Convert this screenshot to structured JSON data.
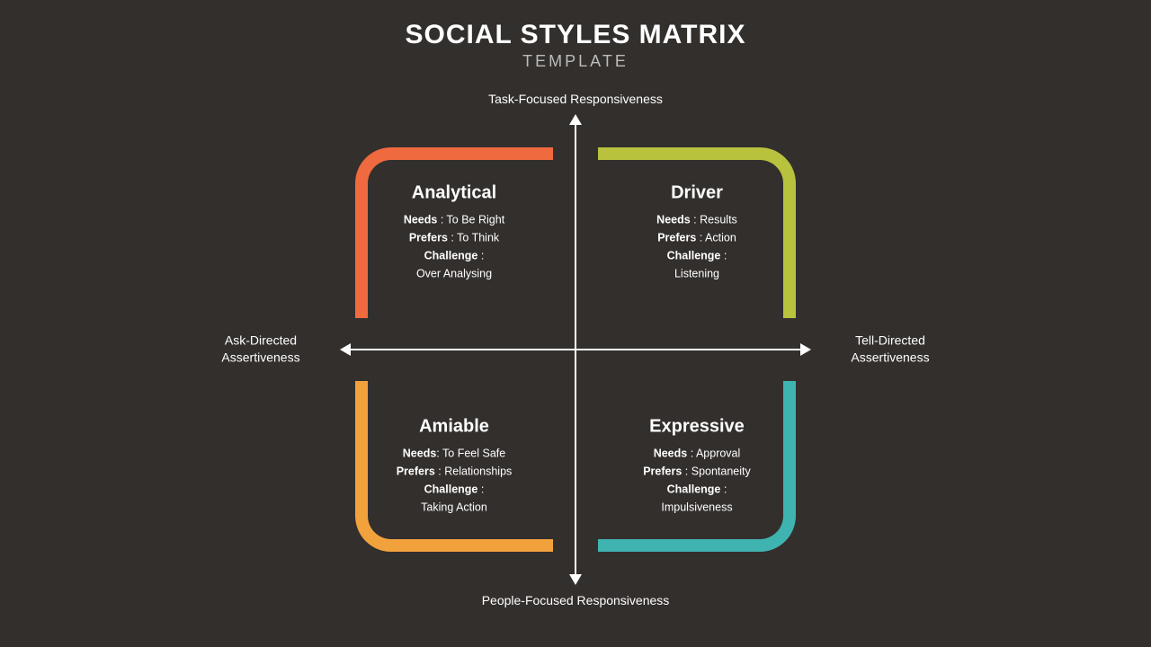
{
  "header": {
    "title": "SOCIAL STYLES MATRIX",
    "subtitle": "TEMPLATE"
  },
  "colors": {
    "background": "#332f2d",
    "text": "#ffffff",
    "axis": "#ffffff",
    "q_tl": "#ef6a3f",
    "q_tr": "#b9c23d",
    "q_bl": "#f2a23d",
    "q_br": "#3fb3b0"
  },
  "axes": {
    "top": "Task-Focused Responsiveness",
    "bottom": "People-Focused Responsiveness",
    "left_line1": "Ask-Directed",
    "left_line2": "Assertiveness",
    "right_line1": "Tell-Directed",
    "right_line2": "Assertiveness"
  },
  "quadrants": {
    "tl": {
      "title": "Analytical",
      "needs_label": "Needs",
      "needs_value": "To Be Right",
      "prefers_label": "Prefers",
      "prefers_value": "To Think",
      "challenge_label": "Challenge",
      "challenge_value": "Over Analysing"
    },
    "tr": {
      "title": "Driver",
      "needs_label": "Needs",
      "needs_value": "Results",
      "prefers_label": "Prefers",
      "prefers_value": "Action",
      "challenge_label": "Challenge",
      "challenge_value": "Listening"
    },
    "bl": {
      "title": "Amiable",
      "needs_label": "Needs",
      "needs_value": "To Feel Safe",
      "prefers_label": "Prefers",
      "prefers_value": "Relationships",
      "challenge_label": "Challenge",
      "challenge_value": "Taking Action"
    },
    "br": {
      "title": "Expressive",
      "needs_label": "Needs",
      "needs_value": "Approval",
      "prefers_label": "Prefers",
      "prefers_value": "Spontaneity",
      "challenge_label": "Challenge",
      "challenge_value": "Impulsiveness"
    }
  }
}
